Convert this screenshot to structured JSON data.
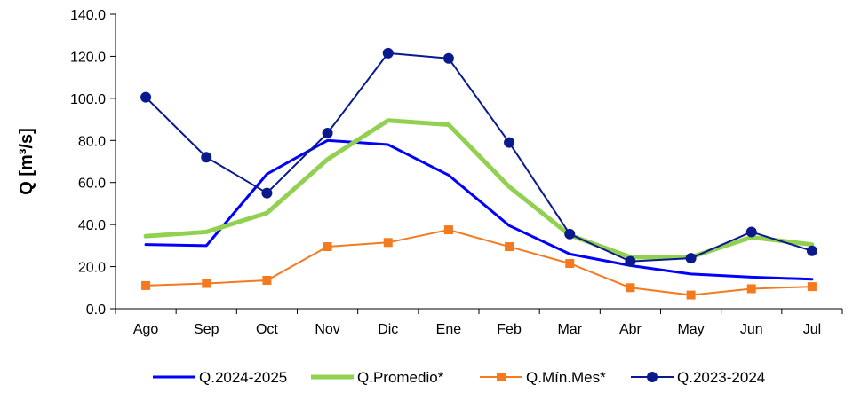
{
  "chart_data": {
    "type": "line",
    "title": "",
    "xlabel": "",
    "ylabel": "Q [m³/s]",
    "ylim": [
      0,
      140
    ],
    "yticks": [
      "0.0",
      "20.0",
      "40.0",
      "60.0",
      "80.0",
      "100.0",
      "120.0",
      "140.0"
    ],
    "grid": false,
    "legend_position": "bottom",
    "categories": [
      "Ago",
      "Sep",
      "Oct",
      "Nov",
      "Dic",
      "Ene",
      "Feb",
      "Mar",
      "Abr",
      "May",
      "Jun",
      "Jul"
    ],
    "series": [
      {
        "name": "Q.2024-2025",
        "color": "#0000ff",
        "marker": "none",
        "width": 3,
        "values": [
          30.5,
          30,
          64,
          80,
          78,
          63.5,
          39.5,
          26,
          20.5,
          16.5,
          15,
          14
        ]
      },
      {
        "name": "Q.Promedio*",
        "color": "#92d050",
        "marker": "none",
        "width": 5,
        "values": [
          34.5,
          36.5,
          45.5,
          71,
          89.5,
          87.5,
          58,
          35,
          24.5,
          24.5,
          34,
          30.5
        ]
      },
      {
        "name": "Q.Mín.Mes*",
        "color": "#f47a20",
        "marker": "square",
        "width": 2,
        "values": [
          11,
          12,
          13.5,
          29.5,
          31.5,
          37.5,
          29.5,
          21.5,
          10,
          6.5,
          9.5,
          10.5
        ]
      },
      {
        "name": "Q.2023-2024",
        "color": "#0a1a8c",
        "marker": "circle",
        "width": 2,
        "values": [
          100.5,
          72,
          55,
          83.5,
          121.5,
          119,
          79,
          35.5,
          22.5,
          24,
          36.5,
          27.5
        ]
      }
    ]
  }
}
